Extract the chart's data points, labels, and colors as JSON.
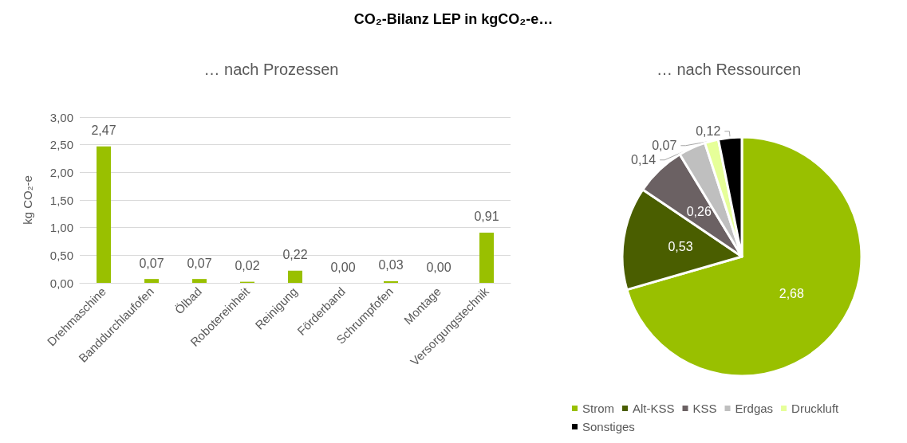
{
  "chart_data": [
    {
      "type": "bar",
      "title": "CO₂-Bilanz LEP in  kgCO₂-e…",
      "subtitle": "… nach Prozessen",
      "ylabel": "kg CO₂-e",
      "categories": [
        "Drehmaschine",
        "Banddurchlaufofen",
        "Ölbad",
        "Robotereinheit",
        "Reinigung",
        "Förderband",
        "Schrumpfofen",
        "Montage",
        "Versorgungstechnik"
      ],
      "values": [
        2.47,
        0.07,
        0.07,
        0.02,
        0.22,
        0.0,
        0.03,
        0.0,
        0.91
      ],
      "value_labels": [
        "2,47",
        "0,07",
        "0,07",
        "0,02",
        "0,22",
        "0,00",
        "0,03",
        "0,00",
        "0,91"
      ],
      "color": "#99c000",
      "ylim": [
        0,
        3
      ],
      "yticks": [
        {
          "value": 0,
          "label": "0,00"
        },
        {
          "value": 0.5,
          "label": "0,50"
        },
        {
          "value": 1,
          "label": "1,00"
        },
        {
          "value": 1.5,
          "label": "1,50"
        },
        {
          "value": 2,
          "label": "2,00"
        },
        {
          "value": 2.5,
          "label": "2,50"
        },
        {
          "value": 3,
          "label": "3,00"
        }
      ],
      "grid": "y",
      "legend": false
    },
    {
      "type": "pie",
      "title": "… nach Ressourcen",
      "categories": [
        "Strom",
        "Alt-KSS",
        "KSS",
        "Erdgas",
        "Druckluft",
        "Sonstiges"
      ],
      "values": [
        2.68,
        0.53,
        0.26,
        0.14,
        0.07,
        0.12
      ],
      "value_labels": [
        "2,68",
        "0,53",
        "0,26",
        "0,14",
        "0,07",
        "0,12"
      ],
      "colors": [
        "#99c000",
        "#4a5e00",
        "#6b6163",
        "#bfbfbf",
        "#e6ff99",
        "#000000"
      ],
      "legend": "bottom"
    }
  ]
}
